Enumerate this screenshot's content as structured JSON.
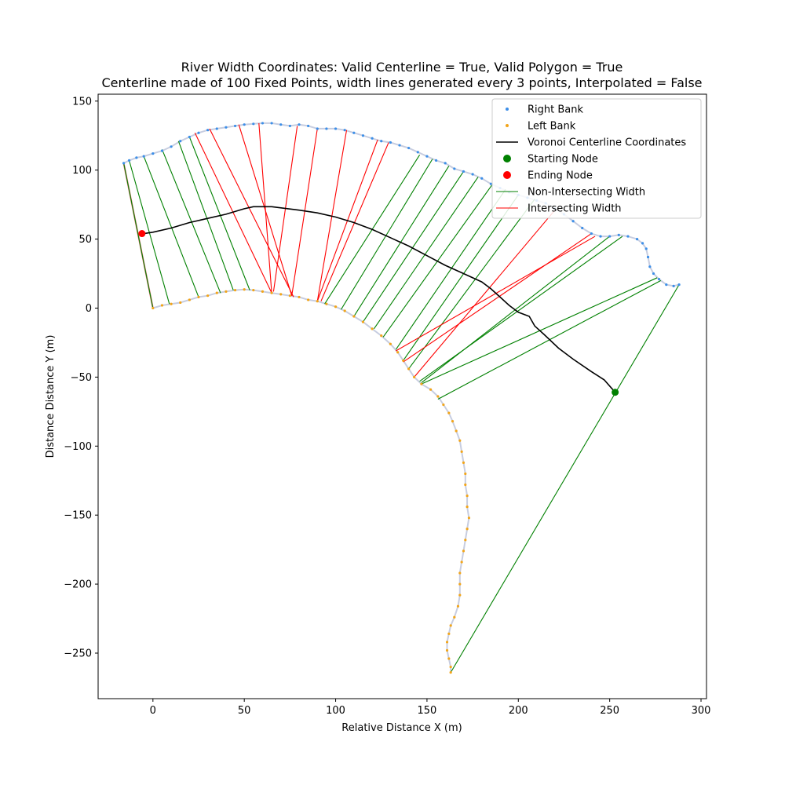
{
  "chart_data": {
    "type": "scatter",
    "title": "River Width Coordinates: Valid Centerline = True, Valid Polygon = True",
    "subtitle": "Centerline made of 100 Fixed Points, width lines generated every 3 points, Interpolated = False",
    "xlabel": "Relative Distance X (m)",
    "ylabel": "Distance Distance Y (m)",
    "xlim": [
      -30,
      303
    ],
    "ylim": [
      -283,
      155
    ],
    "xticks": [
      0,
      50,
      100,
      150,
      200,
      250,
      300
    ],
    "yticks": [
      150,
      100,
      50,
      0,
      -50,
      -100,
      -150,
      -200,
      -250
    ],
    "legend_position": "top-right",
    "grid": false,
    "colors": {
      "right_bank": "#3d8fe8",
      "left_bank": "#f2a51a",
      "centerline": "#000000",
      "starting_node": "#008000",
      "ending_node": "#ff0000",
      "non_intersecting": "#008000",
      "intersecting": "#ff0000",
      "polygon": "#c7cde0",
      "closing_edge": "#e87878"
    },
    "legend": [
      {
        "label": "Right Bank",
        "kind": "dot",
        "color": "#3d8fe8"
      },
      {
        "label": "Left Bank",
        "kind": "dot",
        "color": "#f2a51a"
      },
      {
        "label": "Voronoi Centerline Coordinates",
        "kind": "line",
        "color": "#000000"
      },
      {
        "label": "Starting Node",
        "kind": "bigdot",
        "color": "#008000"
      },
      {
        "label": "Ending Node",
        "kind": "bigdot",
        "color": "#ff0000"
      },
      {
        "label": "Non-Intersecting Width",
        "kind": "thinline",
        "color": "#008000"
      },
      {
        "label": "Intersecting Width",
        "kind": "thinline",
        "color": "#ff0000"
      }
    ],
    "right_bank": [
      [
        -16,
        105
      ],
      [
        -13,
        107
      ],
      [
        -9,
        109
      ],
      [
        -5,
        110
      ],
      [
        0,
        112
      ],
      [
        5,
        114
      ],
      [
        10,
        117
      ],
      [
        15,
        121
      ],
      [
        20,
        124
      ],
      [
        25,
        127
      ],
      [
        30,
        129
      ],
      [
        35,
        130
      ],
      [
        40,
        131
      ],
      [
        45,
        132
      ],
      [
        50,
        133
      ],
      [
        55,
        133.5
      ],
      [
        60,
        134
      ],
      [
        65,
        134
      ],
      [
        70,
        133
      ],
      [
        75,
        132
      ],
      [
        80,
        133
      ],
      [
        85,
        132
      ],
      [
        90,
        130
      ],
      [
        95,
        130
      ],
      [
        100,
        130
      ],
      [
        105,
        129
      ],
      [
        110,
        127
      ],
      [
        115,
        125
      ],
      [
        120,
        123
      ],
      [
        125,
        121
      ],
      [
        130,
        120
      ],
      [
        135,
        118
      ],
      [
        140,
        116
      ],
      [
        145,
        113
      ],
      [
        150,
        110
      ],
      [
        155,
        107
      ],
      [
        160,
        105
      ],
      [
        165,
        101
      ],
      [
        170,
        99
      ],
      [
        175,
        97
      ],
      [
        180,
        94
      ],
      [
        185,
        90
      ],
      [
        190,
        87
      ],
      [
        195,
        84
      ],
      [
        200,
        82
      ],
      [
        205,
        80
      ],
      [
        210,
        78
      ],
      [
        215,
        76
      ],
      [
        220,
        72
      ],
      [
        225,
        68
      ],
      [
        230,
        63
      ],
      [
        235,
        58
      ],
      [
        240,
        54
      ],
      [
        245,
        52
      ],
      [
        250,
        52
      ],
      [
        255,
        53
      ],
      [
        260,
        52
      ],
      [
        265,
        50
      ],
      [
        268,
        47
      ],
      [
        270,
        43
      ],
      [
        271,
        37
      ],
      [
        272,
        30
      ],
      [
        274,
        25
      ],
      [
        277,
        21
      ],
      [
        281,
        17
      ],
      [
        285,
        16
      ],
      [
        288,
        17
      ]
    ],
    "left_bank": [
      [
        0,
        0
      ],
      [
        5,
        2
      ],
      [
        10,
        3
      ],
      [
        15,
        4
      ],
      [
        20,
        6
      ],
      [
        25,
        8
      ],
      [
        30,
        9
      ],
      [
        35,
        11
      ],
      [
        40,
        12
      ],
      [
        45,
        13
      ],
      [
        50,
        13.5
      ],
      [
        55,
        13
      ],
      [
        60,
        12
      ],
      [
        65,
        11
      ],
      [
        70,
        10
      ],
      [
        75,
        9
      ],
      [
        80,
        8
      ],
      [
        85,
        6
      ],
      [
        90,
        5
      ],
      [
        95,
        3
      ],
      [
        100,
        1
      ],
      [
        105,
        -2
      ],
      [
        110,
        -6
      ],
      [
        115,
        -10
      ],
      [
        120,
        -15
      ],
      [
        125,
        -20
      ],
      [
        130,
        -26
      ],
      [
        134,
        -32
      ],
      [
        137,
        -38
      ],
      [
        140,
        -44
      ],
      [
        143,
        -50
      ],
      [
        147,
        -55
      ],
      [
        152,
        -59
      ],
      [
        156,
        -64
      ],
      [
        159,
        -70
      ],
      [
        162,
        -76
      ],
      [
        164,
        -82
      ],
      [
        166,
        -89
      ],
      [
        168,
        -96
      ],
      [
        169,
        -104
      ],
      [
        170,
        -112
      ],
      [
        171,
        -120
      ],
      [
        171,
        -128
      ],
      [
        172,
        -136
      ],
      [
        172,
        -144
      ],
      [
        173,
        -152
      ],
      [
        172,
        -160
      ],
      [
        171,
        -168
      ],
      [
        170,
        -176
      ],
      [
        169,
        -184
      ],
      [
        168,
        -192
      ],
      [
        168,
        -200
      ],
      [
        168,
        -208
      ],
      [
        167,
        -216
      ],
      [
        165,
        -224
      ],
      [
        163,
        -230
      ],
      [
        162,
        -236
      ],
      [
        161,
        -242
      ],
      [
        161,
        -248
      ],
      [
        162,
        -254
      ],
      [
        163,
        -260
      ],
      [
        163,
        -264
      ]
    ],
    "centerline": [
      [
        -5,
        54
      ],
      [
        0,
        55
      ],
      [
        10,
        58
      ],
      [
        20,
        62
      ],
      [
        30,
        65
      ],
      [
        40,
        68
      ],
      [
        50,
        72
      ],
      [
        55,
        73.5
      ],
      [
        65,
        73.5
      ],
      [
        80,
        71
      ],
      [
        90,
        69
      ],
      [
        100,
        66
      ],
      [
        110,
        62
      ],
      [
        120,
        57
      ],
      [
        130,
        51
      ],
      [
        140,
        45
      ],
      [
        150,
        38
      ],
      [
        160,
        31
      ],
      [
        170,
        25
      ],
      [
        180,
        19
      ],
      [
        185,
        14
      ],
      [
        190,
        8
      ],
      [
        195,
        2
      ],
      [
        200,
        -3
      ],
      [
        206,
        -6
      ],
      [
        209,
        -13
      ],
      [
        214,
        -19
      ],
      [
        222,
        -29
      ],
      [
        230,
        -37
      ],
      [
        240,
        -46
      ],
      [
        247,
        -52
      ],
      [
        253,
        -61
      ]
    ],
    "starting_node": [
      253,
      -61
    ],
    "ending_node": [
      -6,
      54
    ],
    "width_lines": [
      {
        "status": "non-intersecting",
        "from": [
          -16,
          105
        ],
        "to": [
          0,
          0
        ]
      },
      {
        "status": "non-intersecting",
        "from": [
          -13,
          107
        ],
        "to": [
          9,
          3
        ]
      },
      {
        "status": "non-intersecting",
        "from": [
          -5,
          110
        ],
        "to": [
          25,
          8
        ]
      },
      {
        "status": "non-intersecting",
        "from": [
          5,
          115
        ],
        "to": [
          37,
          11
        ]
      },
      {
        "status": "non-intersecting",
        "from": [
          14,
          121
        ],
        "to": [
          44,
          13
        ]
      },
      {
        "status": "non-intersecting",
        "from": [
          20,
          124
        ],
        "to": [
          53,
          13
        ]
      },
      {
        "status": "intersecting",
        "from": [
          31,
          130
        ],
        "to": [
          77,
          8
        ]
      },
      {
        "status": "intersecting",
        "from": [
          23,
          127
        ],
        "to": [
          65,
          11
        ]
      },
      {
        "status": "intersecting",
        "from": [
          58,
          134
        ],
        "to": [
          65,
          11
        ]
      },
      {
        "status": "intersecting",
        "from": [
          79,
          132
        ],
        "to": [
          66,
          12
        ]
      },
      {
        "status": "intersecting",
        "from": [
          47,
          133
        ],
        "to": [
          76,
          9
        ]
      },
      {
        "status": "intersecting",
        "from": [
          90,
          130
        ],
        "to": [
          76,
          9
        ]
      },
      {
        "status": "intersecting",
        "from": [
          106,
          129
        ],
        "to": [
          90,
          5
        ]
      },
      {
        "status": "intersecting",
        "from": [
          123,
          122
        ],
        "to": [
          90,
          5
        ]
      },
      {
        "status": "intersecting",
        "from": [
          129,
          120
        ],
        "to": [
          92,
          5
        ]
      },
      {
        "status": "non-intersecting",
        "from": [
          146,
          111
        ],
        "to": [
          94,
          3
        ]
      },
      {
        "status": "non-intersecting",
        "from": [
          153,
          108
        ],
        "to": [
          103,
          -1
        ]
      },
      {
        "status": "non-intersecting",
        "from": [
          162,
          103
        ],
        "to": [
          110,
          -6
        ]
      },
      {
        "status": "non-intersecting",
        "from": [
          170,
          99
        ],
        "to": [
          115,
          -10
        ]
      },
      {
        "status": "non-intersecting",
        "from": [
          178,
          95
        ],
        "to": [
          121,
          -15
        ]
      },
      {
        "status": "non-intersecting",
        "from": [
          186,
          90
        ],
        "to": [
          126,
          -21
        ]
      },
      {
        "status": "non-intersecting",
        "from": [
          193,
          86
        ],
        "to": [
          133,
          -30
        ]
      },
      {
        "status": "non-intersecting",
        "from": [
          200,
          82
        ],
        "to": [
          137,
          -38
        ]
      },
      {
        "status": "non-intersecting",
        "from": [
          209,
          79
        ],
        "to": [
          140,
          -44
        ]
      },
      {
        "status": "intersecting",
        "from": [
          220,
          71
        ],
        "to": [
          143,
          -50
        ]
      },
      {
        "status": "intersecting",
        "from": [
          242,
          52
        ],
        "to": [
          133,
          -31
        ]
      },
      {
        "status": "intersecting",
        "from": [
          240,
          54
        ],
        "to": [
          137,
          -39
        ]
      },
      {
        "status": "non-intersecting",
        "from": [
          250,
          52
        ],
        "to": [
          147,
          -54
        ]
      },
      {
        "status": "non-intersecting",
        "from": [
          257,
          52
        ],
        "to": [
          146,
          -53
        ]
      },
      {
        "status": "non-intersecting",
        "from": [
          276,
          22
        ],
        "to": [
          147,
          -55
        ]
      },
      {
        "status": "non-intersecting",
        "from": [
          278,
          20
        ],
        "to": [
          156,
          -66
        ]
      },
      {
        "status": "non-intersecting",
        "from": [
          288,
          17
        ],
        "to": [
          163,
          -264
        ]
      }
    ]
  }
}
